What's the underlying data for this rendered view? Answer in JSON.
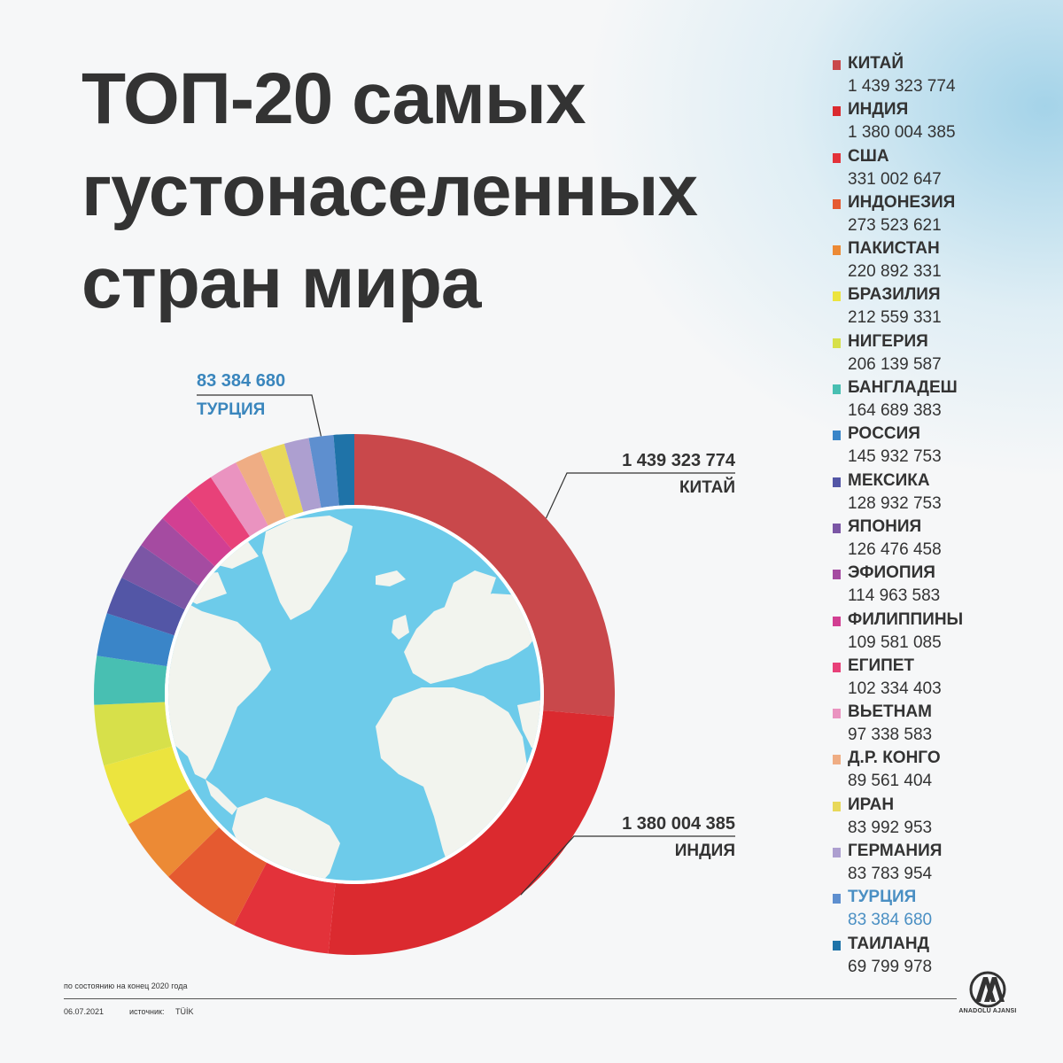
{
  "title_lines": [
    "ТОП-20 самых",
    "густонаселенных",
    "стран мира"
  ],
  "footer": {
    "note": "по состоянию на конец 2020 года",
    "date": "06.07.2021",
    "source_label": "источник:",
    "source": "TÜİK"
  },
  "logo_text": "ANADOLU AJANSI",
  "colors": {
    "text": "#333333",
    "highlight": "#4a8fc3",
    "ocean": "#6dcbea",
    "land": "#f2f4ee"
  },
  "chart_data": {
    "type": "pie",
    "style": "donut",
    "categories": [
      "КИТАЙ",
      "ИНДИЯ",
      "США",
      "ИНДОНЕЗИЯ",
      "ПАКИСТАН",
      "БРАЗИЛИЯ",
      "НИГЕРИЯ",
      "БАНГЛАДЕШ",
      "РОССИЯ",
      "МЕКСИКА",
      "ЯПОНИЯ",
      "ЭФИОПИЯ",
      "ФИЛИППИНЫ",
      "ЕГИПЕТ",
      "ВЬЕТНАМ",
      "Д.Р. КОНГО",
      "ИРАН",
      "ГЕРМАНИЯ",
      "ТУРЦИЯ",
      "ТАИЛАНД"
    ],
    "values": [
      1439323774,
      1380004385,
      331002647,
      273523621,
      220892331,
      212559331,
      206139587,
      164689383,
      145932753,
      128932753,
      126476458,
      114963583,
      109581085,
      102334403,
      97338583,
      89561404,
      83992953,
      83783954,
      83384680,
      69799978
    ],
    "labels": [
      "1 439 323 774",
      "1 380 004 385",
      "331 002 647",
      "273 523 621",
      "220 892 331",
      "212 559 331",
      "206 139 587",
      "164 689 383",
      "145 932 753",
      "128 932 753",
      "126 476 458",
      "114 963 583",
      "109 581 085",
      "102 334 403",
      "97 338 583",
      "89 561 404",
      "83 992 953",
      "83 783 954",
      "83 384 680",
      "69 799 978"
    ],
    "colors": [
      "#c9484b",
      "#db2a2f",
      "#e3323a",
      "#e55a30",
      "#ec8a35",
      "#ece43e",
      "#d7e04a",
      "#48bfb2",
      "#3a85c8",
      "#5356a6",
      "#7b56a5",
      "#a54ba1",
      "#d23f92",
      "#e84179",
      "#ea93c0",
      "#efad84",
      "#e8d85a",
      "#ad9fd0",
      "#5e8fcf",
      "#1f73a8"
    ],
    "highlight": "ТУРЦИЯ",
    "callouts": [
      {
        "category": "КИТАЙ",
        "value_label": "1 439 323 774",
        "name": "КИТАЙ"
      },
      {
        "category": "ИНДИЯ",
        "value_label": "1 380 004 385",
        "name": "ИНДИЯ"
      },
      {
        "category": "ТУРЦИЯ",
        "value_label": "83 384 680",
        "name": "ТУРЦИЯ"
      }
    ],
    "legend_position": "right"
  }
}
